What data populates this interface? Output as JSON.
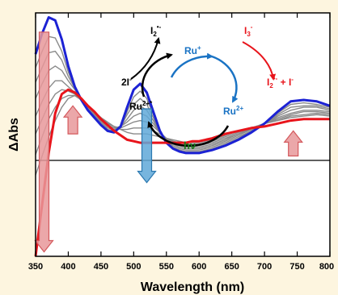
{
  "chart_data": {
    "type": "line",
    "xlabel": "Wavelength (nm)",
    "ylabel": "ΔAbs",
    "xlim": [
      350,
      800
    ],
    "ylim": [
      -0.65,
      1.0
    ],
    "x_ticks": [
      "350",
      "400",
      "450",
      "500",
      "550",
      "600",
      "650",
      "700",
      "750",
      "800"
    ],
    "zero_line": true,
    "grid": false,
    "legend": "none",
    "x": [
      350,
      360,
      370,
      380,
      390,
      400,
      410,
      420,
      430,
      440,
      450,
      460,
      470,
      480,
      490,
      500,
      510,
      520,
      530,
      540,
      550,
      560,
      570,
      580,
      590,
      600,
      620,
      640,
      660,
      680,
      700,
      720,
      740,
      760,
      780,
      800
    ],
    "series": [
      {
        "values": [
          0.72,
          0.86,
          0.97,
          0.95,
          0.82,
          0.64,
          0.5,
          0.41,
          0.34,
          0.29,
          0.24,
          0.2,
          0.19,
          0.23,
          0.36,
          0.48,
          0.52,
          0.46,
          0.33,
          0.2,
          0.12,
          0.08,
          0.06,
          0.05,
          0.05,
          0.05,
          0.07,
          0.1,
          0.14,
          0.19,
          0.25,
          0.33,
          0.4,
          0.41,
          0.4,
          0.37
        ],
        "color": "#1c22d4"
      },
      {
        "values": [
          0.63,
          0.74,
          0.84,
          0.83,
          0.74,
          0.6,
          0.49,
          0.41,
          0.35,
          0.3,
          0.25,
          0.21,
          0.2,
          0.23,
          0.33,
          0.43,
          0.47,
          0.42,
          0.31,
          0.2,
          0.13,
          0.09,
          0.07,
          0.06,
          0.06,
          0.06,
          0.08,
          0.11,
          0.15,
          0.2,
          0.25,
          0.32,
          0.38,
          0.39,
          0.38,
          0.36
        ],
        "color": "#8a8a8a"
      },
      {
        "values": [
          0.53,
          0.63,
          0.73,
          0.74,
          0.68,
          0.57,
          0.49,
          0.42,
          0.36,
          0.31,
          0.26,
          0.22,
          0.21,
          0.23,
          0.31,
          0.38,
          0.42,
          0.38,
          0.29,
          0.19,
          0.13,
          0.1,
          0.08,
          0.07,
          0.07,
          0.07,
          0.09,
          0.12,
          0.16,
          0.2,
          0.25,
          0.31,
          0.36,
          0.37,
          0.37,
          0.35
        ],
        "color": "#8a8a8a"
      },
      {
        "values": [
          0.42,
          0.52,
          0.61,
          0.64,
          0.61,
          0.54,
          0.48,
          0.42,
          0.37,
          0.32,
          0.27,
          0.23,
          0.22,
          0.23,
          0.28,
          0.34,
          0.37,
          0.34,
          0.27,
          0.19,
          0.14,
          0.11,
          0.09,
          0.08,
          0.08,
          0.08,
          0.1,
          0.13,
          0.17,
          0.21,
          0.25,
          0.3,
          0.34,
          0.36,
          0.36,
          0.34
        ],
        "color": "#8a8a8a"
      },
      {
        "values": [
          0.3,
          0.4,
          0.49,
          0.54,
          0.54,
          0.5,
          0.46,
          0.42,
          0.37,
          0.33,
          0.28,
          0.24,
          0.22,
          0.23,
          0.26,
          0.3,
          0.32,
          0.3,
          0.25,
          0.19,
          0.15,
          0.12,
          0.1,
          0.09,
          0.09,
          0.09,
          0.11,
          0.14,
          0.18,
          0.21,
          0.25,
          0.29,
          0.32,
          0.34,
          0.34,
          0.33
        ],
        "color": "#8a8a8a"
      },
      {
        "values": [
          0.18,
          0.28,
          0.38,
          0.45,
          0.48,
          0.47,
          0.45,
          0.41,
          0.37,
          0.33,
          0.29,
          0.25,
          0.23,
          0.22,
          0.24,
          0.26,
          0.27,
          0.26,
          0.23,
          0.19,
          0.15,
          0.13,
          0.11,
          0.1,
          0.1,
          0.1,
          0.12,
          0.15,
          0.18,
          0.22,
          0.25,
          0.28,
          0.31,
          0.33,
          0.33,
          0.32
        ],
        "color": "#8a8a8a"
      },
      {
        "values": [
          0.04,
          0.16,
          0.28,
          0.36,
          0.42,
          0.44,
          0.44,
          0.41,
          0.37,
          0.33,
          0.29,
          0.25,
          0.23,
          0.21,
          0.21,
          0.22,
          0.22,
          0.22,
          0.2,
          0.18,
          0.15,
          0.13,
          0.12,
          0.11,
          0.11,
          0.11,
          0.13,
          0.16,
          0.19,
          0.22,
          0.25,
          0.27,
          0.3,
          0.31,
          0.32,
          0.31
        ],
        "color": "#8a8a8a"
      },
      {
        "values": [
          -0.1,
          0.03,
          0.16,
          0.27,
          0.36,
          0.42,
          0.44,
          0.41,
          0.37,
          0.33,
          0.29,
          0.26,
          0.23,
          0.21,
          0.19,
          0.18,
          0.18,
          0.18,
          0.17,
          0.16,
          0.15,
          0.14,
          0.13,
          0.12,
          0.12,
          0.12,
          0.14,
          0.17,
          0.2,
          0.22,
          0.25,
          0.27,
          0.29,
          0.3,
          0.31,
          0.3
        ],
        "color": "#8a8a8a"
      },
      {
        "values": [
          -0.65,
          -0.3,
          0.05,
          0.32,
          0.45,
          0.48,
          0.46,
          0.42,
          0.37,
          0.33,
          0.28,
          0.24,
          0.2,
          0.17,
          0.14,
          0.13,
          0.12,
          0.12,
          0.12,
          0.12,
          0.12,
          0.12,
          0.12,
          0.12,
          0.13,
          0.13,
          0.15,
          0.18,
          0.2,
          0.22,
          0.23,
          0.25,
          0.27,
          0.28,
          0.28,
          0.28
        ],
        "color": "#e8141b"
      }
    ],
    "arrows": [
      {
        "direction": "down",
        "x": 363,
        "from": 0.87,
        "to": -0.62,
        "color": "#e8989a"
      },
      {
        "direction": "up",
        "x": 407,
        "from": 0.18,
        "to": 0.37,
        "color": "#e8989a"
      },
      {
        "direction": "down",
        "x": 520,
        "from": 0.35,
        "to": -0.15,
        "color": "#5fa8d8"
      },
      {
        "direction": "up",
        "x": 744,
        "from": 0.03,
        "to": 0.2,
        "color": "#e8989a"
      }
    ],
    "annotations": {
      "scheme": {
        "ru_plus": "Ru",
        "ru_plus_sup": "+",
        "ru_2plus": "Ru",
        "ru_2plus_sup": "2+",
        "ru_2plus_star": "Ru",
        "ru_2plus_star_sup": "2+*",
        "two_i": "2I",
        "two_i_sup": "-",
        "i2_radical": "I",
        "i2_radical_sub": "2",
        "i2_radical_sup": "•-",
        "i3": "I",
        "i3_sub": "3",
        "i3_sup": "-",
        "product_i2": "I",
        "product_i2_sub": "2",
        "product_i2_sup": "•-",
        "product_plus": " + I",
        "product_i_sup": "-",
        "hv": "hν",
        "colors": {
          "blue": "#1a73c4",
          "red": "#e8141b",
          "green": "#1a7a1a",
          "black": "#000000"
        }
      }
    }
  }
}
